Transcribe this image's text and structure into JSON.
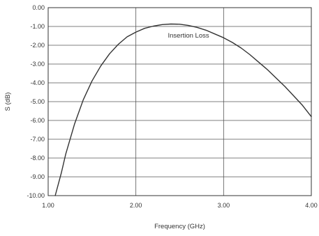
{
  "chart_data": {
    "type": "line",
    "title": "",
    "xlabel": "Frequency (GHz)",
    "ylabel": "S (dB)",
    "xlim": [
      1.0,
      4.0
    ],
    "ylim": [
      -10.0,
      0.0
    ],
    "x_ticks": [
      1.0,
      2.0,
      3.0,
      4.0
    ],
    "x_tick_labels": [
      "1.00",
      "2.00",
      "3.00",
      "4.00"
    ],
    "y_ticks": [
      0,
      -1,
      -2,
      -3,
      -4,
      -5,
      -6,
      -7,
      -8,
      -9,
      -10
    ],
    "y_tick_labels": [
      "0.00",
      "-1.00",
      "-2.00",
      "-3.00",
      "-4.00",
      "-5.00",
      "-6.00",
      "-7.00",
      "-8.00",
      "-9.00",
      "-10.00"
    ],
    "grid": true,
    "legend": "none",
    "annotations": [
      {
        "text": "Insertion Loss",
        "x": 2.6,
        "y": -1.6
      }
    ],
    "series": [
      {
        "line_color": "#333333",
        "x": [
          1.08,
          1.15,
          1.2,
          1.3,
          1.4,
          1.5,
          1.6,
          1.7,
          1.8,
          1.9,
          2.0,
          2.1,
          2.2,
          2.3,
          2.4,
          2.5,
          2.6,
          2.7,
          2.8,
          2.9,
          3.0,
          3.1,
          3.2,
          3.3,
          3.4,
          3.5,
          3.6,
          3.7,
          3.8,
          3.9,
          4.0
        ],
        "y": [
          -10.0,
          -8.8,
          -7.8,
          -6.2,
          -4.9,
          -3.9,
          -3.1,
          -2.45,
          -1.95,
          -1.55,
          -1.3,
          -1.1,
          -0.98,
          -0.9,
          -0.87,
          -0.88,
          -0.95,
          -1.05,
          -1.2,
          -1.4,
          -1.6,
          -1.85,
          -2.15,
          -2.5,
          -2.9,
          -3.3,
          -3.75,
          -4.2,
          -4.7,
          -5.2,
          -5.8
        ]
      }
    ]
  }
}
